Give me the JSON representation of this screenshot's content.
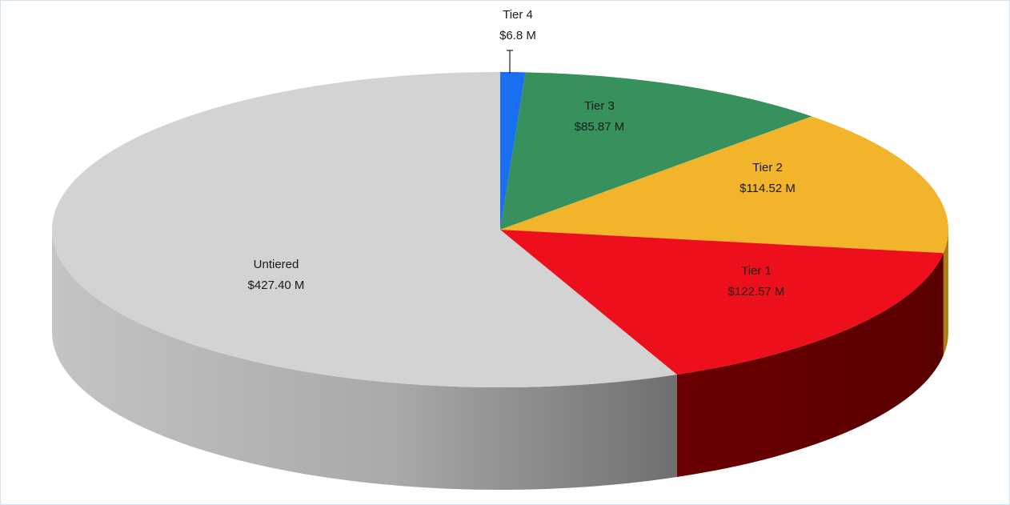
{
  "chart_data": {
    "type": "pie",
    "title": "",
    "slices": [
      {
        "name": "Tier 4",
        "label": "Tier 4",
        "value_label": "$6.8 M",
        "value": 6.8,
        "color": "#1a6ff0"
      },
      {
        "name": "Tier 3",
        "label": "Tier 3",
        "value_label": "$85.87 M",
        "value": 85.87,
        "color": "#36915c"
      },
      {
        "name": "Tier 2",
        "label": "Tier 2",
        "value_label": "$114.52 M",
        "value": 114.52,
        "color": "#f2b42a"
      },
      {
        "name": "Tier 1",
        "label": "Tier 1",
        "value_label": "$122.57 M",
        "value": 122.57,
        "color": "#ee0f1d"
      },
      {
        "name": "Untiered",
        "label": "Untiered",
        "value_label": "$427.40 M",
        "value": 427.4,
        "color": "#d3d3d3"
      }
    ],
    "style": "3d-tilted",
    "legend": "none"
  }
}
